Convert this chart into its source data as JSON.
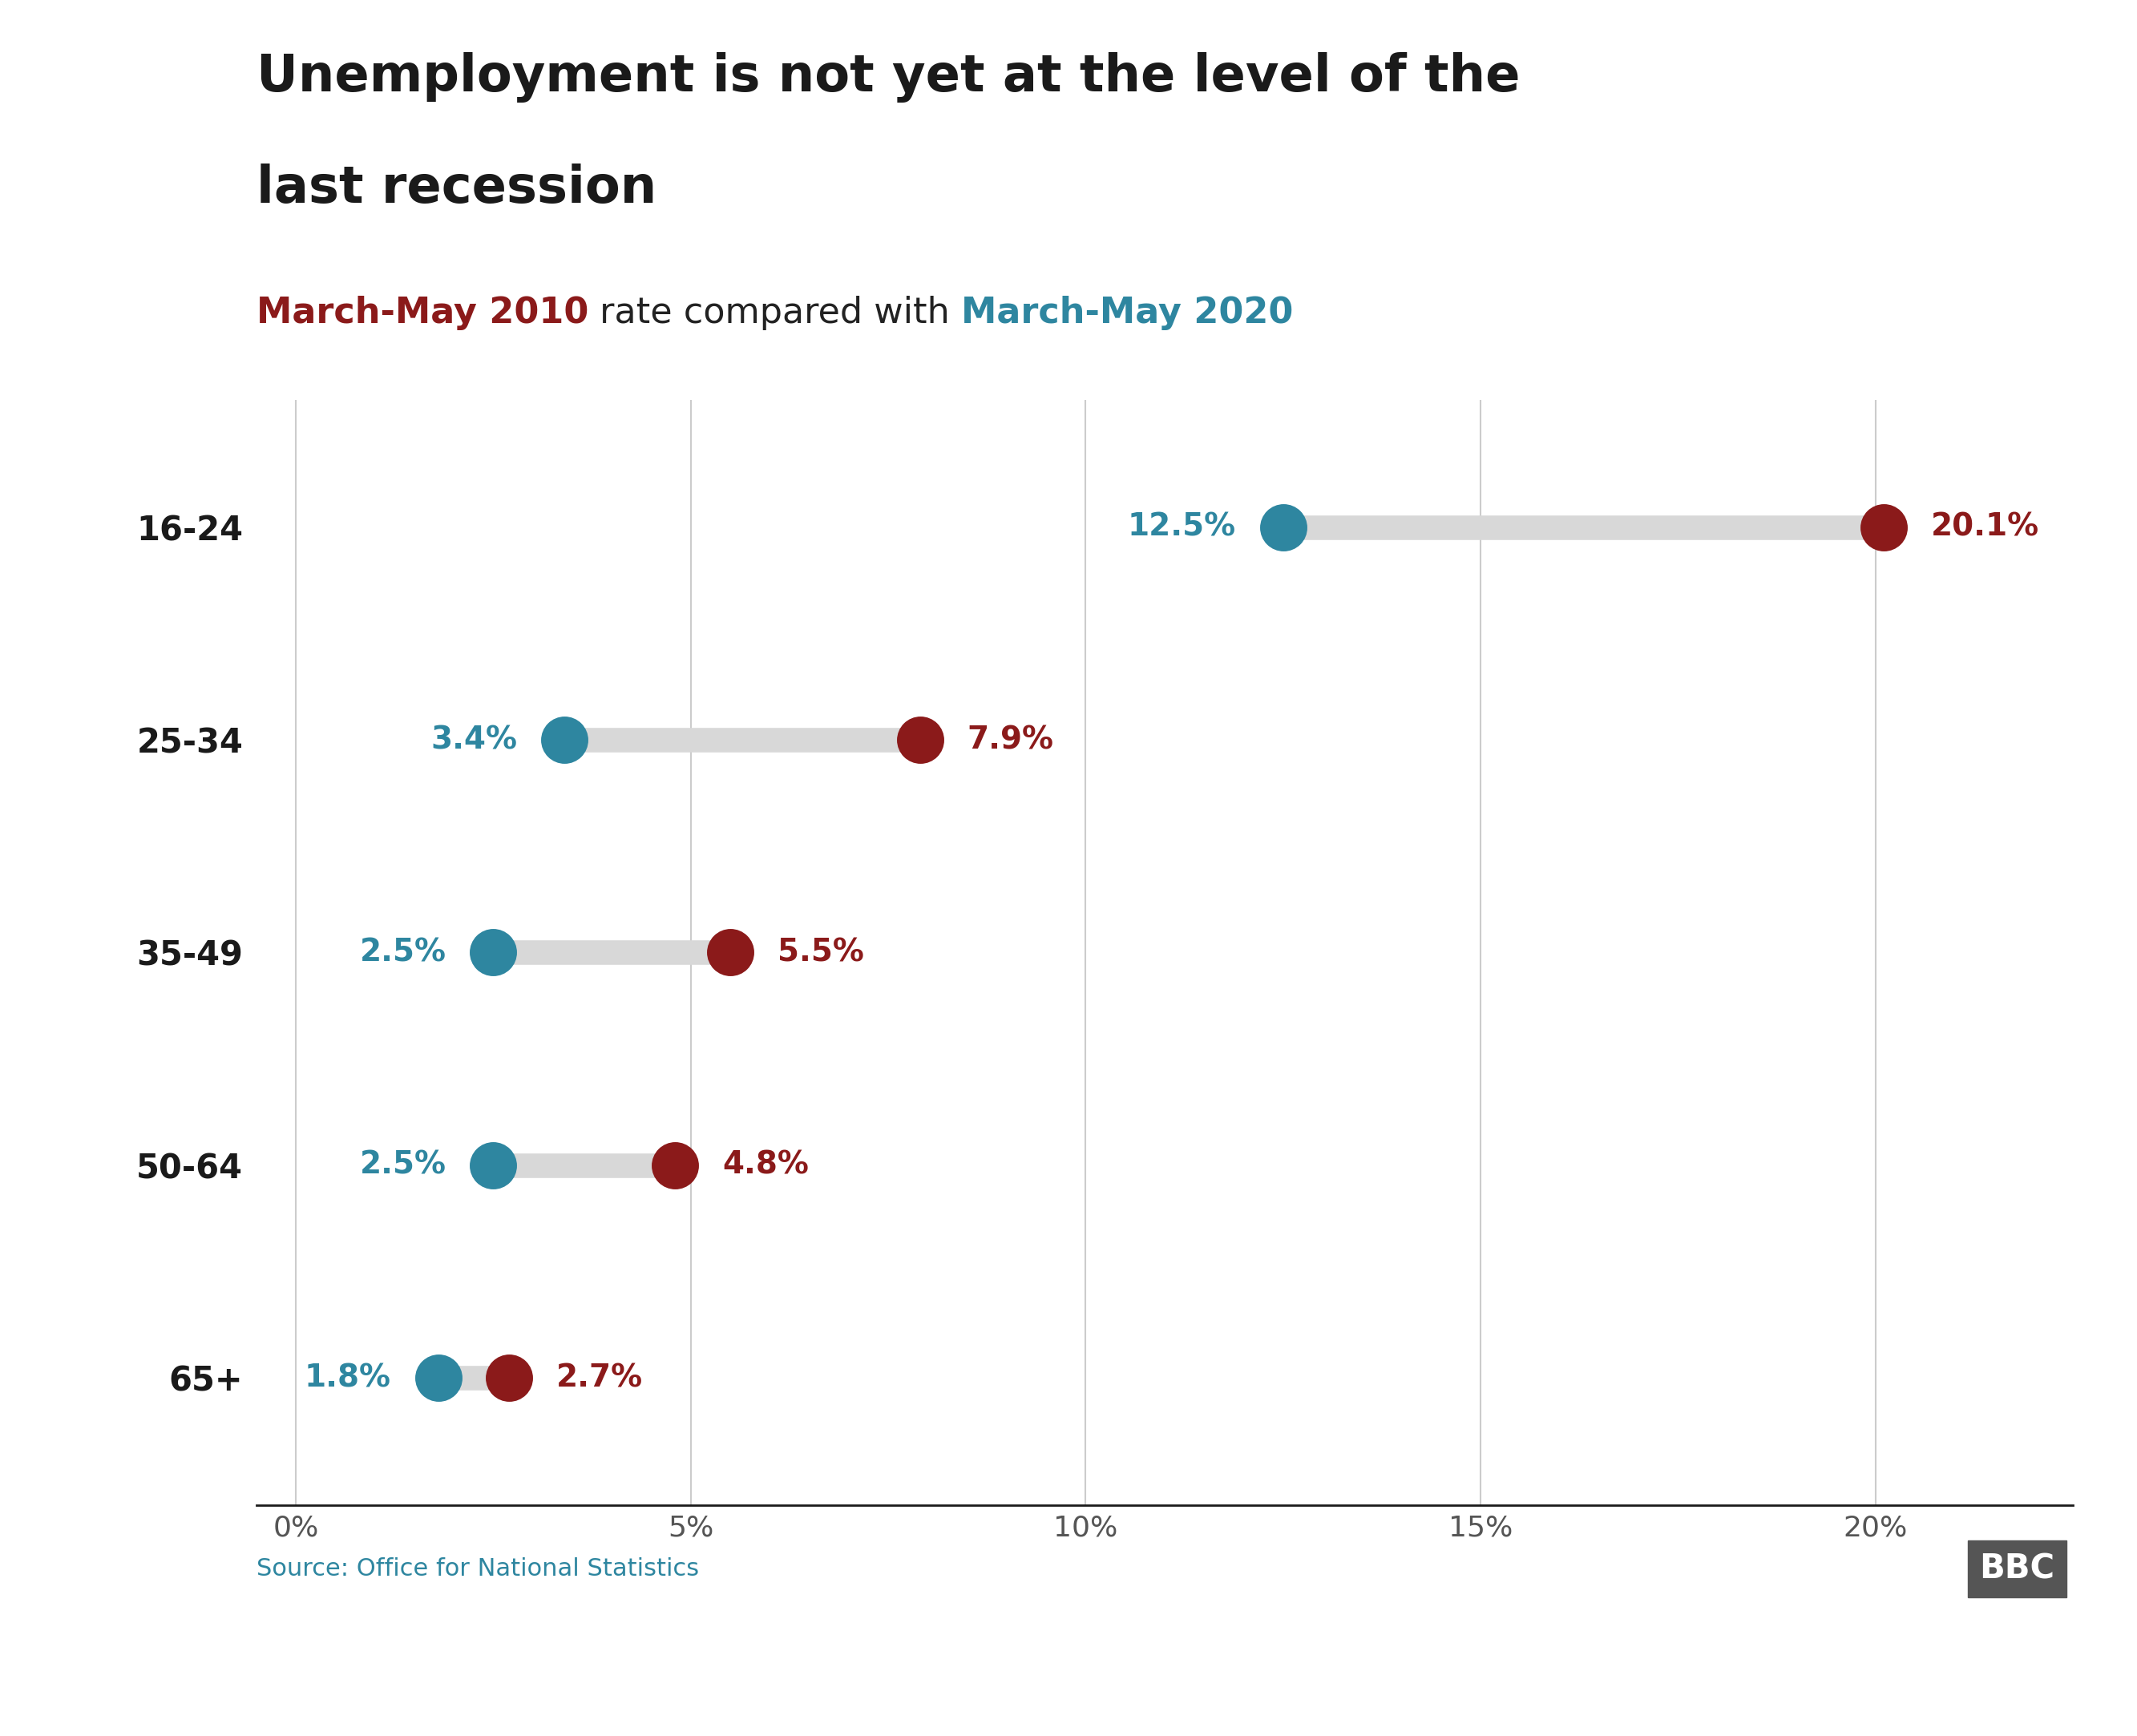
{
  "title_line1": "Unemployment is not yet at the level of the",
  "title_line2": "last recession",
  "subtitle_parts": [
    {
      "text": "March-May 2010",
      "color": "#8B1A1A"
    },
    {
      "text": " rate compared with ",
      "color": "#222222"
    },
    {
      "text": "March-May 2020",
      "color": "#2E86A0"
    }
  ],
  "categories": [
    "16-24",
    "25-34",
    "35-49",
    "50-64",
    "65+"
  ],
  "values_2020": [
    12.5,
    3.4,
    2.5,
    2.5,
    1.8
  ],
  "values_2010": [
    20.1,
    7.9,
    5.5,
    4.8,
    2.7
  ],
  "color_2020": "#2E86A0",
  "color_2010": "#8B1A1A",
  "connector_color": "#d8d8d8",
  "xlim": [
    -0.5,
    22.5
  ],
  "xticks": [
    0,
    5,
    10,
    15,
    20
  ],
  "xticklabels": [
    "0%",
    "5%",
    "10%",
    "15%",
    "20%"
  ],
  "source_text": "Source: Office for National Statistics",
  "dot_size": 1800,
  "connector_lw": 22,
  "title_fontsize": 46,
  "subtitle_fontsize": 32,
  "category_fontsize": 30,
  "value_fontsize": 28,
  "tick_fontsize": 26,
  "source_fontsize": 22,
  "background_color": "#ffffff",
  "grid_color": "#cccccc"
}
